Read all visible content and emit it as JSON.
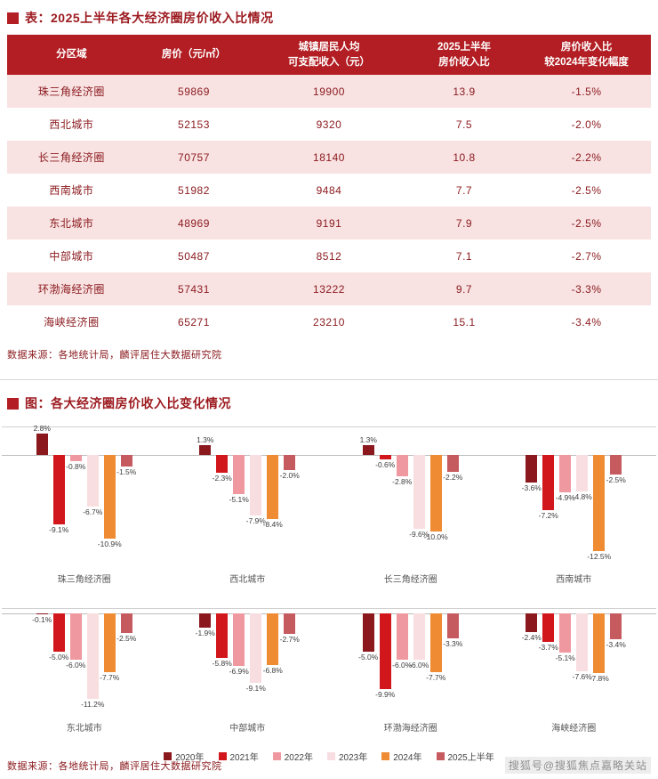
{
  "page": {
    "table_source": "数据来源：各地统计局，麟评居住大数据研究院",
    "chart_source": "数据来源：各地统计局，麟评居住大数据研究院",
    "watermark": "搜狐号@搜狐焦点嘉略关站"
  },
  "colors": {
    "header_bg": "#b21e23",
    "row_stripe": "#f8e2e2",
    "title_text": "#9c1a1f",
    "cell_text": "#8c1c20"
  },
  "chart_data": [
    {
      "type": "table",
      "title": "表：2025上半年各大经济圈房价收入比情况",
      "columns": [
        {
          "line1": "分区域",
          "line2": ""
        },
        {
          "line1": "房价（元/㎡）",
          "line2": ""
        },
        {
          "line1": "城镇居民人均",
          "line2": "可支配收入（元）"
        },
        {
          "line1": "2025上半年",
          "line2": "房价收入比"
        },
        {
          "line1": "房价收入比",
          "line2": "较2024年变化幅度"
        }
      ],
      "rows": [
        [
          "珠三角经济圈",
          "59869",
          "19900",
          "13.9",
          "-1.5%"
        ],
        [
          "西北城市",
          "52153",
          "9320",
          "7.5",
          "-2.0%"
        ],
        [
          "长三角经济圈",
          "70757",
          "18140",
          "10.8",
          "-2.2%"
        ],
        [
          "西南城市",
          "51982",
          "9484",
          "7.7",
          "-2.5%"
        ],
        [
          "东北城市",
          "48969",
          "9191",
          "7.9",
          "-2.5%"
        ],
        [
          "中部城市",
          "50487",
          "8512",
          "7.1",
          "-2.7%"
        ],
        [
          "环渤海经济圈",
          "57431",
          "13222",
          "9.7",
          "-3.3%"
        ],
        [
          "海峡经济圈",
          "65271",
          "23210",
          "15.1",
          "-3.4%"
        ]
      ]
    },
    {
      "type": "bar",
      "title": "图：各大经济圈房价收入比变化情况",
      "unit": "%",
      "ylim": [
        -13,
        3
      ],
      "grid": "baseline-only",
      "value_labels": true,
      "legend_position": "bottom",
      "series_labels": [
        "2020年",
        "2021年",
        "2022年",
        "2023年",
        "2024年",
        "2025上半年"
      ],
      "series_colors": [
        "#8a181d",
        "#d2171c",
        "#f0989f",
        "#f9dee1",
        "#ef8b33",
        "#c55a5f"
      ],
      "groups": [
        {
          "name": "珠三角经济圈",
          "values": [
            2.8,
            -9.1,
            -0.8,
            -6.7,
            -10.9,
            -1.5
          ]
        },
        {
          "name": "西北城市",
          "values": [
            1.3,
            -2.3,
            -5.1,
            -7.9,
            -8.4,
            -2.0
          ]
        },
        {
          "name": "长三角经济圈",
          "values": [
            1.3,
            -0.6,
            -2.8,
            -9.6,
            -10.0,
            -2.2
          ]
        },
        {
          "name": "西南城市",
          "values": [
            -3.6,
            -7.2,
            -4.9,
            -4.8,
            -12.5,
            -2.5
          ]
        },
        {
          "name": "东北城市",
          "values": [
            -0.1,
            -5.0,
            -6.0,
            -11.2,
            -7.7,
            -2.5
          ]
        },
        {
          "name": "中部城市",
          "values": [
            -1.9,
            -5.8,
            -6.9,
            -9.1,
            -6.8,
            -2.7
          ]
        },
        {
          "name": "环渤海经济圈",
          "values": [
            -5.0,
            -9.9,
            -6.0,
            -6.0,
            -7.7,
            -3.3
          ]
        },
        {
          "name": "海峡经济圈",
          "values": [
            -2.4,
            -3.7,
            -5.1,
            -7.6,
            -7.8,
            -3.4
          ]
        }
      ]
    }
  ]
}
